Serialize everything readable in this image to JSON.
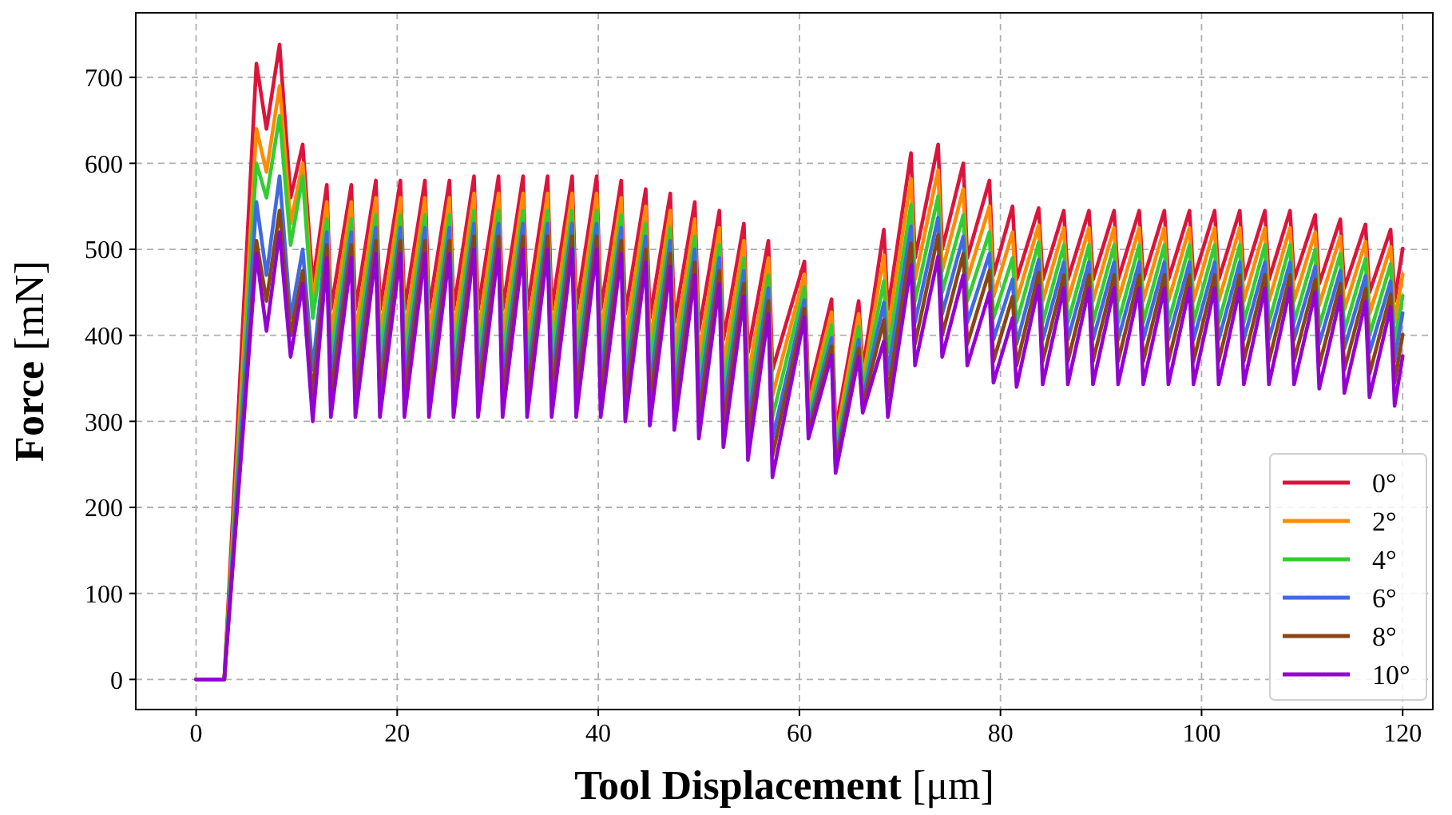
{
  "chart_data": {
    "type": "line",
    "xlabel": "Tool Displacement [μm]",
    "ylabel": "Force [mN]",
    "xlim": [
      -6,
      123
    ],
    "ylim": [
      -35,
      775
    ],
    "xticks": [
      0,
      20,
      40,
      60,
      80,
      100,
      120
    ],
    "yticks": [
      0,
      100,
      200,
      300,
      400,
      500,
      600,
      700
    ],
    "grid": true,
    "legend": "bottom right",
    "line_style": "solid",
    "x": [
      0,
      2.8,
      6.0,
      7.0,
      8.3,
      9.4,
      10.6,
      11.6,
      13.0,
      13.4,
      15.44,
      15.84,
      17.88,
      18.28,
      20.32,
      20.72,
      22.76,
      23.16,
      25.2,
      25.6,
      27.64,
      28.04,
      30.08,
      30.48,
      32.52,
      32.92,
      34.96,
      35.36,
      37.4,
      37.8,
      39.84,
      40.24,
      42.28,
      42.68,
      44.72,
      45.12,
      47.16,
      47.56,
      49.6,
      50.0,
      52.04,
      52.44,
      54.48,
      54.88,
      56.92,
      57.32,
      60.5,
      60.9,
      63.2,
      63.6,
      65.9,
      66.3,
      68.4,
      68.8,
      71.1,
      71.5,
      73.8,
      74.2,
      76.3,
      76.7,
      78.9,
      79.3,
      81.2,
      81.6,
      83.8,
      84.2,
      86.3,
      86.7,
      88.8,
      89.2,
      91.3,
      91.7,
      93.8,
      94.2,
      96.3,
      96.7,
      98.8,
      99.2,
      101.3,
      101.7,
      103.8,
      104.2,
      106.3,
      106.7,
      108.8,
      109.2,
      111.3,
      111.7,
      113.8,
      114.2,
      116.3,
      116.7,
      118.8,
      119.2,
      120.0
    ],
    "series": [
      {
        "name": "0°",
        "color": "#dc143c",
        "values": [
          0,
          0,
          716,
          640,
          738,
          560,
          622,
          460,
          575,
          430,
          575,
          430,
          580,
          430,
          580,
          430,
          580,
          430,
          580,
          430,
          585,
          430,
          585,
          430,
          585,
          430,
          585,
          430,
          585,
          430,
          585,
          430,
          580,
          425,
          570,
          420,
          565,
          415,
          555,
          405,
          545,
          395,
          530,
          380,
          510,
          360,
          486,
          330,
          442,
          290,
          440,
          360,
          523,
          430,
          612,
          490,
          622,
          500,
          600,
          490,
          580,
          470,
          550,
          465,
          548,
          465,
          545,
          465,
          545,
          465,
          545,
          465,
          545,
          465,
          545,
          465,
          545,
          465,
          545,
          465,
          545,
          465,
          545,
          465,
          545,
          465,
          540,
          460,
          535,
          455,
          529,
          450,
          523,
          440,
          501
        ]
      },
      {
        "name": "2°",
        "color": "#ff8c00",
        "values": [
          0,
          0,
          640,
          590,
          690,
          530,
          600,
          440,
          555,
          400,
          555,
          400,
          560,
          400,
          560,
          400,
          560,
          400,
          560,
          400,
          565,
          400,
          565,
          400,
          565,
          400,
          565,
          400,
          565,
          400,
          565,
          400,
          560,
          395,
          550,
          390,
          545,
          385,
          535,
          375,
          525,
          365,
          510,
          350,
          490,
          330,
          471,
          318,
          427,
          278,
          425,
          348,
          493,
          405,
          582,
          465,
          592,
          475,
          570,
          465,
          550,
          445,
          520,
          440,
          528,
          440,
          525,
          440,
          525,
          440,
          525,
          440,
          525,
          440,
          525,
          440,
          525,
          440,
          525,
          440,
          525,
          440,
          525,
          440,
          525,
          440,
          520,
          435,
          515,
          430,
          509,
          425,
          503,
          415,
          471
        ]
      },
      {
        "name": "4°",
        "color": "#32cd32",
        "values": [
          0,
          0,
          600,
          560,
          655,
          505,
          585,
          420,
          535,
          375,
          535,
          375,
          540,
          375,
          540,
          375,
          540,
          375,
          540,
          375,
          545,
          375,
          545,
          375,
          545,
          375,
          545,
          375,
          545,
          375,
          545,
          375,
          540,
          370,
          530,
          365,
          525,
          360,
          515,
          350,
          505,
          340,
          490,
          325,
          470,
          305,
          456,
          306,
          412,
          266,
          410,
          336,
          463,
          380,
          552,
          440,
          562,
          450,
          540,
          440,
          520,
          420,
          490,
          415,
          508,
          415,
          505,
          415,
          505,
          415,
          505,
          415,
          505,
          415,
          505,
          415,
          505,
          415,
          505,
          415,
          505,
          415,
          505,
          415,
          505,
          415,
          500,
          410,
          495,
          405,
          489,
          400,
          483,
          390,
          446
        ]
      },
      {
        "name": "6°",
        "color": "#4169e1",
        "values": [
          0,
          0,
          555,
          470,
          585,
          420,
          500,
          360,
          520,
          350,
          520,
          350,
          525,
          350,
          525,
          350,
          525,
          350,
          525,
          350,
          530,
          350,
          530,
          350,
          530,
          350,
          530,
          350,
          530,
          350,
          530,
          350,
          525,
          345,
          515,
          340,
          510,
          335,
          500,
          325,
          490,
          315,
          475,
          300,
          455,
          280,
          441,
          296,
          397,
          256,
          395,
          326,
          438,
          355,
          527,
          415,
          537,
          425,
          515,
          415,
          495,
          395,
          465,
          390,
          488,
          395,
          485,
          395,
          485,
          395,
          485,
          395,
          485,
          395,
          485,
          395,
          485,
          395,
          485,
          395,
          485,
          395,
          485,
          395,
          485,
          395,
          480,
          390,
          475,
          385,
          469,
          380,
          463,
          370,
          426
        ]
      },
      {
        "name": "8°",
        "color": "#8b4513",
        "values": [
          0,
          0,
          510,
          440,
          545,
          400,
          475,
          330,
          505,
          330,
          505,
          330,
          510,
          330,
          510,
          330,
          510,
          330,
          510,
          330,
          515,
          330,
          515,
          330,
          515,
          330,
          515,
          330,
          515,
          330,
          515,
          330,
          510,
          325,
          500,
          320,
          495,
          315,
          485,
          305,
          475,
          295,
          460,
          280,
          440,
          260,
          431,
          288,
          387,
          248,
          385,
          318,
          418,
          330,
          507,
          390,
          517,
          400,
          495,
          390,
          475,
          370,
          445,
          365,
          473,
          370,
          470,
          370,
          470,
          370,
          470,
          370,
          470,
          370,
          470,
          370,
          470,
          370,
          470,
          370,
          470,
          370,
          470,
          370,
          470,
          370,
          465,
          365,
          460,
          360,
          454,
          355,
          448,
          345,
          401
        ]
      },
      {
        "name": "10°",
        "color": "#9400d3",
        "values": [
          0,
          0,
          495,
          405,
          520,
          375,
          460,
          300,
          490,
          305,
          490,
          305,
          495,
          305,
          495,
          305,
          495,
          305,
          495,
          305,
          500,
          305,
          500,
          305,
          500,
          305,
          500,
          305,
          500,
          305,
          500,
          305,
          495,
          300,
          485,
          295,
          480,
          290,
          470,
          280,
          460,
          270,
          445,
          255,
          425,
          235,
          421,
          280,
          377,
          240,
          375,
          310,
          393,
          305,
          482,
          365,
          492,
          375,
          470,
          365,
          450,
          345,
          420,
          340,
          458,
          343,
          455,
          343,
          455,
          343,
          455,
          343,
          455,
          343,
          455,
          343,
          455,
          343,
          455,
          343,
          455,
          343,
          455,
          343,
          455,
          343,
          450,
          338,
          445,
          333,
          439,
          328,
          433,
          318,
          376
        ]
      }
    ]
  }
}
